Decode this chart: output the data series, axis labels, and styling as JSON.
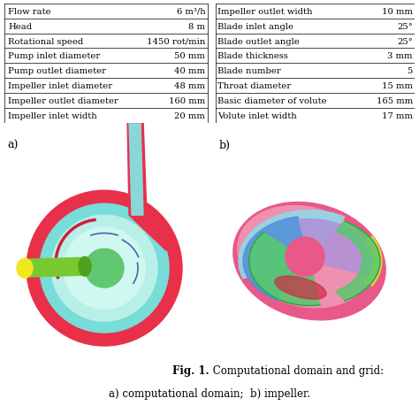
{
  "table_left": [
    [
      "Flow rate",
      "6 m³/h"
    ],
    [
      "Head",
      "8 m"
    ],
    [
      "Rotational speed",
      "1450 rot/min"
    ],
    [
      "Pump inlet diameter",
      "50 mm"
    ],
    [
      "Pump outlet diameter",
      "40 mm"
    ],
    [
      "Impeller inlet diameter",
      "48 mm"
    ],
    [
      "Impeller outlet diameter",
      "160 mm"
    ],
    [
      "Impeller inlet width",
      "20 mm"
    ]
  ],
  "table_right": [
    [
      "Impeller outlet width",
      "10 mm"
    ],
    [
      "Blade inlet angle",
      "25°"
    ],
    [
      "Blade outlet angle",
      "25°"
    ],
    [
      "Blade thickness",
      "3 mm"
    ],
    [
      "Blade number",
      "5"
    ],
    [
      "Throat diameter",
      "15 mm"
    ],
    [
      "Basic diameter of volute",
      "165 mm"
    ],
    [
      "Volute inlet width",
      "17 mm"
    ]
  ],
  "caption_bold": "Fig. 1.",
  "caption_normal": " Computational domain and grid:",
  "caption_line2": "a) computational domain;  b) impeller.",
  "label_a": "a)",
  "label_b": "b)",
  "bg_color": "#ffffff",
  "table_font_size": 7.2,
  "caption_font_size": 8.5,
  "label_font_size": 9,
  "col_divider": 0.505
}
